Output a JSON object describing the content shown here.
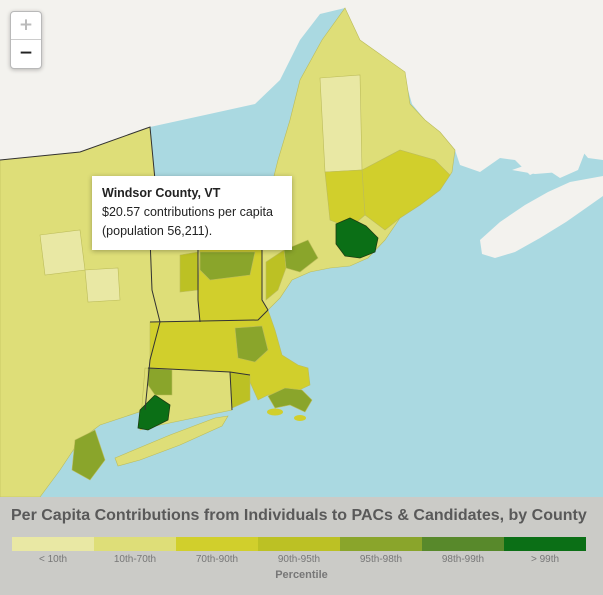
{
  "map": {
    "colors": {
      "ocean": "#aad9e1",
      "land": "#f3f2ee",
      "lt10": "#e9e8a4",
      "p10_70": "#dede78",
      "p70_90": "#d1cf2c",
      "p90_95": "#bcc124",
      "p95_98": "#8aa52b",
      "p98_99": "#58892b",
      "gt99": "#0b6f16"
    }
  },
  "zoom": {
    "in_label": "+",
    "out_label": "−"
  },
  "tooltip": {
    "title": "Windsor County, VT",
    "line1": "$20.57 contributions per capita",
    "line2": "(population 56,211)."
  },
  "legend": {
    "title": "Per Capita Contributions from Individuals to PACs & Candidates, by County",
    "axis_label": "Percentile",
    "items": [
      {
        "label": "< 10th",
        "color": "#e9e8a4"
      },
      {
        "label": "10th-70th",
        "color": "#dede78"
      },
      {
        "label": "70th-90th",
        "color": "#d1cf2c"
      },
      {
        "label": "90th-95th",
        "color": "#bcc124"
      },
      {
        "label": "95th-98th",
        "color": "#8aa52b"
      },
      {
        "label": "98th-99th",
        "color": "#58892b"
      },
      {
        "label": "> 99th",
        "color": "#0b6f16"
      }
    ]
  }
}
